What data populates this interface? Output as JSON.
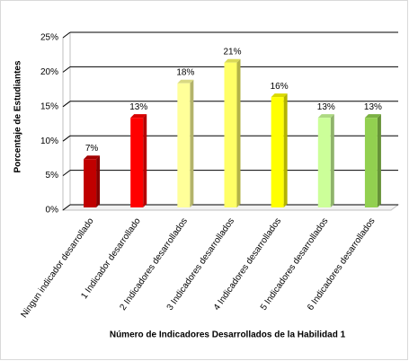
{
  "chart_data": {
    "type": "bar3d",
    "x_label": "Número de Indicadores Desarrollados de la Habilidad 1",
    "y_label": "Porcentaje de Estudiantes",
    "categories": [
      "Ningun indicador desarrollado",
      "1 Indicador desarrollado",
      "2 Indicadores desarrollados",
      "3 Indicadores desarrollados",
      "4 Indicadores desarrollados",
      "5 Indicadores desarrollados",
      "6 Indicadores desarrollados"
    ],
    "values": [
      7,
      13,
      18,
      21,
      16,
      13,
      13
    ],
    "value_labels": [
      "7%",
      "13%",
      "18%",
      "21%",
      "16%",
      "13%",
      "13%"
    ],
    "colors": [
      "#c00000",
      "#ff0000",
      "#ffff99",
      "#ffff66",
      "#ffff00",
      "#ccff99",
      "#92d050"
    ],
    "ylim": [
      0,
      25
    ],
    "yticks": [
      {
        "value": 0,
        "label": "0%"
      },
      {
        "value": 5,
        "label": "5%"
      },
      {
        "value": 10,
        "label": "10%"
      },
      {
        "value": 15,
        "label": "15%"
      },
      {
        "value": 20,
        "label": "20%"
      },
      {
        "value": 25,
        "label": "25%"
      }
    ],
    "grid": true
  }
}
